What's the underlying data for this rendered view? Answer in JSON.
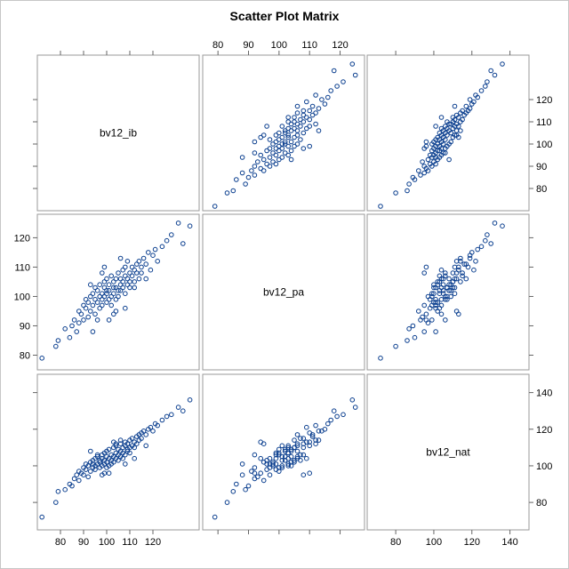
{
  "chart_data": {
    "type": "scatter-matrix",
    "title": "Scatter Plot Matrix",
    "variables": [
      {
        "name": "bv12_ib",
        "range": [
          70,
          140
        ],
        "ticks": [
          80,
          90,
          100,
          110,
          120
        ]
      },
      {
        "name": "bv12_pa",
        "range": [
          75,
          128
        ],
        "ticks": [
          80,
          90,
          100,
          110,
          120
        ]
      },
      {
        "name": "bv12_nat",
        "range": [
          65,
          150
        ],
        "ticks": [
          80,
          100,
          120,
          140
        ]
      }
    ],
    "axis_placement": {
      "top_ticks_column": 1,
      "right_ticks_row": 0,
      "left_ticks_row": 1,
      "bottom_ticks_columns": [
        0
      ],
      "right_ticks_row_last": 2
    },
    "marker": {
      "shape": "open-circle",
      "color": "#0b3f8f"
    },
    "grid": false,
    "points": [
      [
        72,
        79,
        72
      ],
      [
        78,
        83,
        80
      ],
      [
        79,
        85,
        86
      ],
      [
        82,
        89,
        87
      ],
      [
        84,
        86,
        90
      ],
      [
        85,
        90,
        89
      ],
      [
        86,
        92,
        93
      ],
      [
        87,
        88,
        95
      ],
      [
        88,
        95,
        92
      ],
      [
        88,
        91,
        97
      ],
      [
        89,
        94,
        96
      ],
      [
        90,
        97,
        95
      ],
      [
        90,
        92,
        99
      ],
      [
        91,
        96,
        98
      ],
      [
        91,
        99,
        101
      ],
      [
        92,
        93,
        94
      ],
      [
        92,
        98,
        100
      ],
      [
        93,
        100,
        97
      ],
      [
        93,
        95,
        102
      ],
      [
        94,
        97,
        99
      ],
      [
        94,
        101,
        103
      ],
      [
        95,
        99,
        98
      ],
      [
        95,
        94,
        104
      ],
      [
        95,
        103,
        100
      ],
      [
        96,
        98,
        101
      ],
      [
        96,
        102,
        105
      ],
      [
        97,
        100,
        99
      ],
      [
        97,
        96,
        103
      ],
      [
        97,
        104,
        102
      ],
      [
        98,
        101,
        100
      ],
      [
        98,
        99,
        106
      ],
      [
        98,
        97,
        104
      ],
      [
        99,
        103,
        101
      ],
      [
        99,
        100,
        107
      ],
      [
        99,
        105,
        103
      ],
      [
        100,
        98,
        102
      ],
      [
        100,
        102,
        108
      ],
      [
        100,
        101,
        99
      ],
      [
        100,
        106,
        105
      ],
      [
        101,
        99,
        104
      ],
      [
        101,
        104,
        100
      ],
      [
        101,
        102,
        109
      ],
      [
        102,
        100,
        106
      ],
      [
        102,
        107,
        103
      ],
      [
        102,
        97,
        101
      ],
      [
        103,
        103,
        110
      ],
      [
        103,
        101,
        105
      ],
      [
        103,
        105,
        102
      ],
      [
        104,
        99,
        107
      ],
      [
        104,
        106,
        104
      ],
      [
        104,
        103,
        111
      ],
      [
        105,
        102,
        103
      ],
      [
        105,
        108,
        106
      ],
      [
        105,
        100,
        109
      ],
      [
        106,
        104,
        105
      ],
      [
        106,
        106,
        112
      ],
      [
        106,
        102,
        108
      ],
      [
        107,
        109,
        104
      ],
      [
        107,
        105,
        110
      ],
      [
        107,
        103,
        107
      ],
      [
        108,
        101,
        111
      ],
      [
        108,
        107,
        106
      ],
      [
        108,
        110,
        113
      ],
      [
        109,
        104,
        109
      ],
      [
        109,
        106,
        108
      ],
      [
        109,
        112,
        112
      ],
      [
        110,
        105,
        114
      ],
      [
        110,
        108,
        110
      ],
      [
        110,
        103,
        107
      ],
      [
        111,
        110,
        111
      ],
      [
        111,
        107,
        115
      ],
      [
        112,
        109,
        113
      ],
      [
        112,
        105,
        110
      ],
      [
        113,
        111,
        116
      ],
      [
        113,
        108,
        112
      ],
      [
        114,
        106,
        117
      ],
      [
        114,
        112,
        114
      ],
      [
        115,
        110,
        118
      ],
      [
        115,
        108,
        115
      ],
      [
        116,
        113,
        119
      ],
      [
        117,
        111,
        117
      ],
      [
        118,
        115,
        120
      ],
      [
        119,
        109,
        121
      ],
      [
        120,
        114,
        119
      ],
      [
        121,
        116,
        123
      ],
      [
        122,
        112,
        122
      ],
      [
        124,
        117,
        125
      ],
      [
        126,
        119,
        127
      ],
      [
        128,
        121,
        128
      ],
      [
        131,
        125,
        132
      ],
      [
        133,
        118,
        130
      ],
      [
        136,
        124,
        136
      ],
      [
        96,
        92,
        106
      ],
      [
        104,
        95,
        112
      ],
      [
        98,
        108,
        95
      ],
      [
        108,
        96,
        101
      ],
      [
        93,
        104,
        108
      ],
      [
        112,
        103,
        104
      ],
      [
        101,
        92,
        96
      ],
      [
        106,
        113,
        114
      ],
      [
        94,
        88,
        101
      ],
      [
        117,
        106,
        111
      ],
      [
        99,
        110,
        96
      ],
      [
        103,
        94,
        113
      ]
    ]
  }
}
